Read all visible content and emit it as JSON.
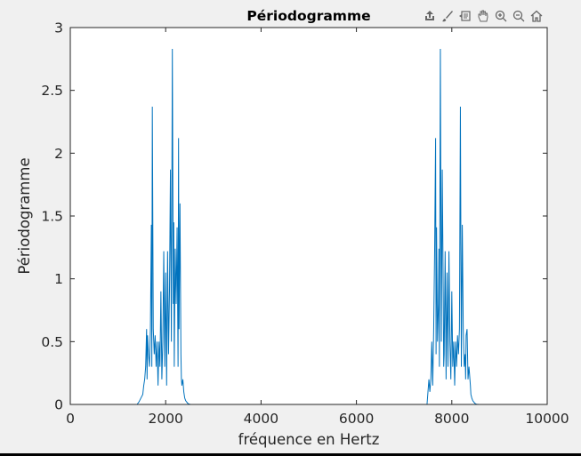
{
  "toolbar": {
    "icons": [
      "export-icon",
      "brush-icon",
      "data-tips-icon",
      "pan-icon",
      "zoom-in-icon",
      "zoom-out-icon",
      "home-icon"
    ]
  },
  "colors": {
    "line": "#0072bd",
    "axes": "#262626",
    "figure_bg": "#f0f0f0",
    "axes_bg": "#ffffff"
  },
  "chart_data": {
    "type": "line",
    "title": "Périodogramme",
    "xlabel": "fréquence en Hertz",
    "ylabel": "Périodogramme",
    "xlim": [
      0,
      10000
    ],
    "ylim": [
      0,
      3
    ],
    "xticks": [
      0,
      2000,
      4000,
      6000,
      8000,
      10000
    ],
    "xtick_labels": [
      "0",
      "2000",
      "4000",
      "6000",
      "8000",
      "10000"
    ],
    "yticks": [
      0,
      0.5,
      1,
      1.5,
      2,
      2.5,
      3
    ],
    "ytick_labels": [
      "0",
      "0.5",
      "1",
      "1.5",
      "2",
      "2.5",
      "3"
    ],
    "grid": false,
    "series": [
      {
        "x": [
          0,
          1400,
          1440,
          1480,
          1520,
          1540,
          1560,
          1580,
          1600,
          1610,
          1620,
          1640,
          1660,
          1680,
          1700,
          1710,
          1720,
          1740,
          1760,
          1780,
          1800,
          1820,
          1840,
          1860,
          1880,
          1900,
          1920,
          1940,
          1960,
          1980,
          2000,
          2020,
          2040,
          2060,
          2080,
          2100,
          2120,
          2140,
          2160,
          2170,
          2180,
          2200,
          2220,
          2240,
          2260,
          2270,
          2280,
          2300,
          2320,
          2330,
          2340,
          2360,
          2380,
          2400,
          2420,
          2440,
          2460,
          2480,
          2520,
          7480,
          7520,
          7540,
          7560,
          7580,
          7600,
          7620,
          7640,
          7660,
          7670,
          7680,
          7700,
          7720,
          7730,
          7740,
          7760,
          7780,
          7800,
          7820,
          7830,
          7840,
          7860,
          7880,
          7900,
          7920,
          7940,
          7960,
          7980,
          8000,
          8020,
          8040,
          8060,
          8080,
          8100,
          8120,
          8140,
          8160,
          8180,
          8200,
          8220,
          8240,
          8260,
          8280,
          8290,
          8300,
          8320,
          8340,
          8360,
          8380,
          8390,
          8400,
          8420,
          8440,
          8460,
          8480,
          8500,
          8520,
          8540,
          8560,
          8600,
          10000
        ],
        "y": [
          0,
          0,
          0.02,
          0.05,
          0.08,
          0.15,
          0.2,
          0.3,
          0.6,
          0.2,
          0.55,
          0.4,
          0.3,
          0.6,
          1.43,
          0.3,
          2.37,
          0.6,
          0.4,
          0.55,
          0.3,
          0.5,
          0.15,
          0.5,
          0.3,
          0.9,
          0.2,
          0.5,
          1.22,
          0.3,
          1.05,
          0.15,
          1.22,
          0.4,
          0.9,
          1.87,
          0.5,
          2.83,
          0.8,
          1.45,
          0.3,
          1.24,
          0.8,
          1.41,
          0.3,
          2.12,
          0.6,
          1.6,
          0.4,
          0.2,
          0.15,
          0.2,
          0.1,
          0.05,
          0.03,
          0.02,
          0.01,
          0.005,
          0,
          0,
          0.2,
          0.1,
          0.2,
          0.5,
          0.15,
          0.6,
          1.23,
          2.12,
          0.4,
          1.41,
          0.5,
          0.8,
          1.24,
          0.3,
          2.83,
          0.5,
          1.87,
          0.9,
          0.3,
          0.4,
          1.22,
          0.2,
          1.05,
          0.3,
          1.22,
          0.5,
          0.2,
          0.9,
          0.3,
          0.5,
          0.15,
          0.5,
          0.3,
          0.55,
          0.4,
          0.6,
          2.37,
          0.3,
          1.43,
          0.6,
          0.3,
          0.4,
          0.2,
          0.55,
          0.6,
          0.2,
          0.3,
          0.2,
          0.15,
          0.08,
          0.05,
          0.03,
          0.02,
          0.01,
          0.005,
          0.002,
          0.001,
          0.0005,
          0,
          0
        ]
      }
    ]
  }
}
